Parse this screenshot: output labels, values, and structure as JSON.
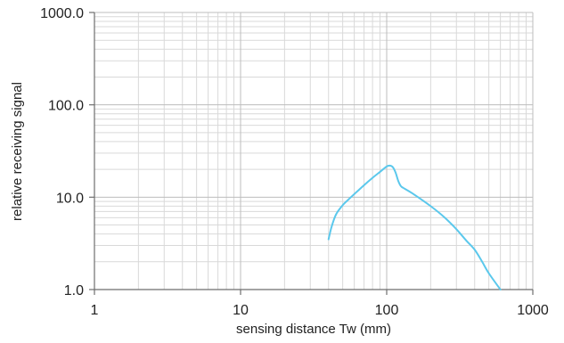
{
  "chart_data": {
    "type": "line",
    "title": "",
    "xlabel": "sensing distance Tw (mm)",
    "ylabel": "relative receiving signal",
    "x_scale": "log",
    "y_scale": "log",
    "xlim": [
      1,
      1000
    ],
    "ylim": [
      1,
      1000
    ],
    "x_ticks": [
      1,
      10,
      100,
      1000
    ],
    "x_tick_labels": [
      "1",
      "10",
      "100",
      "1000"
    ],
    "y_ticks": [
      1,
      10,
      100,
      1000
    ],
    "y_tick_labels": [
      "1.0",
      "10.0",
      "100.0",
      "1000.0"
    ],
    "grid": true,
    "legend": "none",
    "colors": {
      "line": "#5bc8ec",
      "grid_minor": "#d9d9d9",
      "grid_major": "#bdbdbd",
      "axis": "#6e6e6e"
    },
    "series": [
      {
        "x": [
          40,
          42,
          45,
          50,
          55,
          60,
          70,
          80,
          90,
          100,
          105,
          110,
          115,
          120,
          125,
          130,
          150,
          200,
          250,
          300,
          350,
          400,
          450,
          500,
          600
        ],
        "y": [
          3.5,
          4.8,
          6.5,
          8.2,
          9.5,
          10.8,
          13.5,
          16.2,
          18.8,
          21.5,
          22.0,
          21.2,
          18.5,
          15.0,
          13.2,
          12.6,
          11.0,
          8.0,
          6.0,
          4.5,
          3.4,
          2.7,
          2.0,
          1.5,
          1.0
        ]
      }
    ]
  }
}
